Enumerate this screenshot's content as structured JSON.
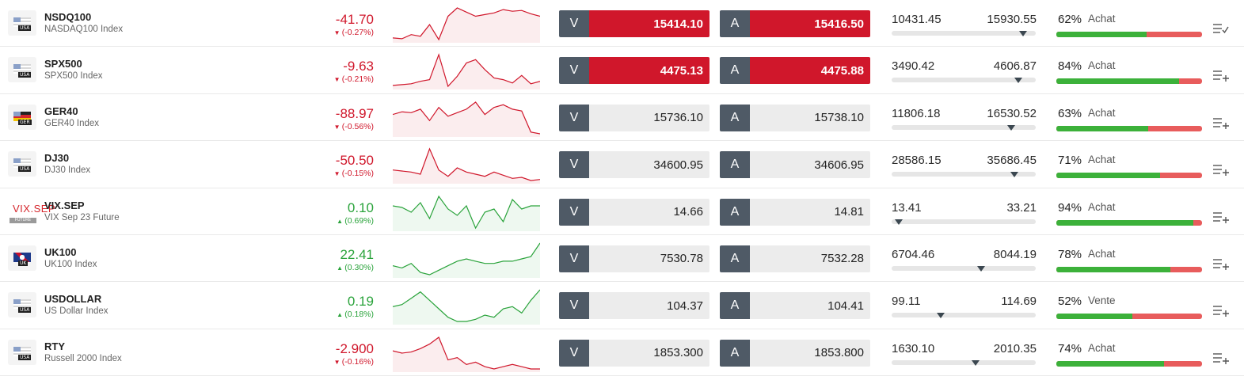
{
  "rows": [
    {
      "symbol": "NSDQ100",
      "description": "NASDAQ100 Index",
      "flag": "us",
      "flag_tag": "USA",
      "change": "-41.70",
      "change_pct": "(-0.27%)",
      "direction": "down",
      "spark": [
        4,
        3,
        8,
        6,
        20,
        2,
        30,
        40,
        35,
        30,
        32,
        34,
        38,
        36,
        37,
        33,
        30
      ],
      "sell_label": "V",
      "sell": "15414.10",
      "buy_label": "A",
      "buy": "15416.50",
      "highlight": true,
      "low": "10431.45",
      "high": "15930.55",
      "range_position": 0.91,
      "sentiment_pct": "62%",
      "sentiment_label": "Achat",
      "sentiment_value": 62,
      "menu_icon": "menu-check-icon"
    },
    {
      "symbol": "SPX500",
      "description": "SPX500 Index",
      "flag": "us",
      "flag_tag": "USA",
      "change": "-9.63",
      "change_pct": "(-0.21%)",
      "direction": "down",
      "spark": [
        3,
        4,
        5,
        8,
        10,
        40,
        2,
        14,
        30,
        34,
        22,
        12,
        10,
        6,
        15,
        5,
        8
      ],
      "sell_label": "V",
      "sell": "4475.13",
      "buy_label": "A",
      "buy": "4475.88",
      "highlight": true,
      "low": "3490.42",
      "high": "4606.87",
      "range_position": 0.88,
      "sentiment_pct": "84%",
      "sentiment_label": "Achat",
      "sentiment_value": 84,
      "menu_icon": "menu-add-icon"
    },
    {
      "symbol": "GER40",
      "description": "GER40 Index",
      "flag": "de",
      "flag_tag": "GER",
      "change": "-88.97",
      "change_pct": "(-0.56%)",
      "direction": "down",
      "spark": [
        22,
        25,
        24,
        28,
        15,
        30,
        20,
        24,
        28,
        36,
        22,
        30,
        33,
        28,
        26,
        2,
        0
      ],
      "sell_label": "V",
      "sell": "15736.10",
      "buy_label": "A",
      "buy": "15738.10",
      "highlight": false,
      "low": "11806.18",
      "high": "16530.52",
      "range_position": 0.83,
      "sentiment_pct": "63%",
      "sentiment_label": "Achat",
      "sentiment_value": 63,
      "menu_icon": "menu-add-icon"
    },
    {
      "symbol": "DJ30",
      "description": "DJ30 Index",
      "flag": "us",
      "flag_tag": "USA",
      "change": "-50.50",
      "change_pct": "(-0.15%)",
      "direction": "down",
      "spark": [
        10,
        9,
        8,
        6,
        30,
        10,
        4,
        12,
        8,
        6,
        4,
        8,
        5,
        2,
        3,
        0,
        1
      ],
      "sell_label": "V",
      "sell": "34600.95",
      "buy_label": "A",
      "buy": "34606.95",
      "highlight": false,
      "low": "28586.15",
      "high": "35686.45",
      "range_position": 0.85,
      "sentiment_pct": "71%",
      "sentiment_label": "Achat",
      "sentiment_value": 71,
      "menu_icon": "menu-add-icon"
    },
    {
      "symbol": "VIX.SEP",
      "description": "VIX Sep 23 Future",
      "flag": "vix",
      "flag_tag": "FUTURE",
      "change": "0.10",
      "change_pct": "(0.69%)",
      "direction": "up",
      "spark": [
        20,
        19,
        16,
        22,
        12,
        26,
        18,
        14,
        20,
        6,
        16,
        18,
        10,
        24,
        18,
        20,
        20
      ],
      "sell_label": "V",
      "sell": "14.66",
      "buy_label": "A",
      "buy": "14.81",
      "highlight": false,
      "low": "13.41",
      "high": "33.21",
      "range_position": 0.05,
      "sentiment_pct": "94%",
      "sentiment_label": "Achat",
      "sentiment_value": 94,
      "menu_icon": "menu-add-icon"
    },
    {
      "symbol": "UK100",
      "description": "UK100 Index",
      "flag": "uk",
      "flag_tag": "UK",
      "change": "22.41",
      "change_pct": "(0.30%)",
      "direction": "up",
      "spark": [
        8,
        6,
        10,
        2,
        0,
        4,
        8,
        12,
        14,
        12,
        10,
        10,
        12,
        12,
        14,
        16,
        28
      ],
      "sell_label": "V",
      "sell": "7530.78",
      "buy_label": "A",
      "buy": "7532.28",
      "highlight": false,
      "low": "6704.46",
      "high": "8044.19",
      "range_position": 0.62,
      "sentiment_pct": "78%",
      "sentiment_label": "Achat",
      "sentiment_value": 78,
      "menu_icon": "menu-add-icon"
    },
    {
      "symbol": "USDOLLAR",
      "description": "US Dollar Index",
      "flag": "us",
      "flag_tag": "USA",
      "change": "0.19",
      "change_pct": "(0.18%)",
      "direction": "up",
      "spark": [
        14,
        16,
        22,
        28,
        20,
        12,
        4,
        0,
        0,
        2,
        6,
        4,
        12,
        14,
        8,
        20,
        30
      ],
      "sell_label": "V",
      "sell": "104.37",
      "buy_label": "A",
      "buy": "104.41",
      "highlight": false,
      "low": "99.11",
      "high": "114.69",
      "range_position": 0.34,
      "sentiment_pct": "52%",
      "sentiment_label": "Vente",
      "sentiment_value": 52,
      "menu_icon": "menu-add-icon"
    },
    {
      "symbol": "RTY",
      "description": "Russell 2000 Index",
      "flag": "us",
      "flag_tag": "USA",
      "change": "-2.900",
      "change_pct": "(-0.16%)",
      "direction": "down",
      "spark": [
        16,
        14,
        15,
        18,
        22,
        28,
        8,
        10,
        4,
        6,
        2,
        0,
        2,
        4,
        2,
        0,
        0
      ],
      "sell_label": "V",
      "sell": "1853.300",
      "buy_label": "A",
      "buy": "1853.800",
      "highlight": false,
      "low": "1630.10",
      "high": "2010.35",
      "range_position": 0.58,
      "sentiment_pct": "74%",
      "sentiment_label": "Achat",
      "sentiment_value": 74,
      "menu_icon": "menu-add-icon"
    }
  ],
  "colors": {
    "down": "#d0172b",
    "up": "#2aa33b",
    "sell_bg": "#4f5a66",
    "highlight": "#d0172b",
    "buy_fill": "#3cb13a",
    "sell_fill": "#e85c5c"
  }
}
